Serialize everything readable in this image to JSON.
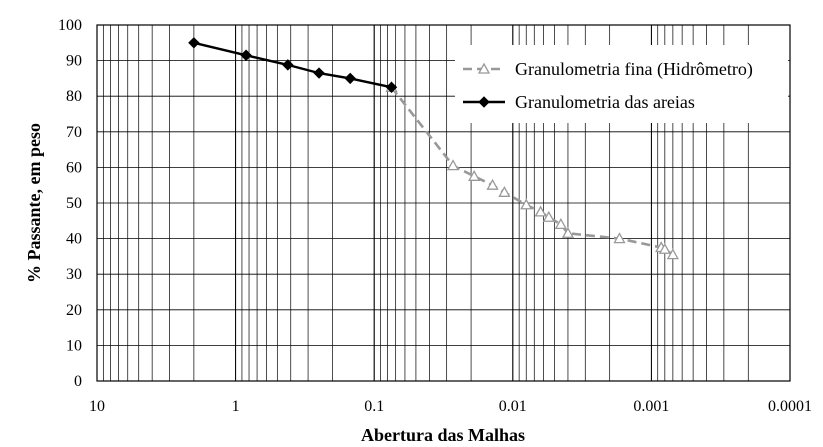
{
  "chart_data": {
    "type": "line",
    "xlabel": "Abertura das Malhas",
    "ylabel": "% Passante, em peso",
    "x_scale": "log",
    "x_reversed": true,
    "xlim": [
      10,
      0.0001
    ],
    "ylim": [
      0,
      100
    ],
    "x_ticks": [
      10,
      1,
      0.1,
      0.01,
      0.001,
      0.0001
    ],
    "x_tick_labels": [
      "10",
      "1",
      "0.1",
      "0.01",
      "0.001",
      "0.0001"
    ],
    "y_ticks": [
      0,
      10,
      20,
      30,
      40,
      50,
      60,
      70,
      80,
      90,
      100
    ],
    "grid": true,
    "legend_position": "top-right",
    "series": [
      {
        "name": "Granulometria fina (Hidrômetro)",
        "color": "#999999",
        "marker": "triangle",
        "dash": true,
        "x": [
          0.075,
          0.027,
          0.019,
          0.014,
          0.0115,
          0.008,
          0.0063,
          0.0055,
          0.0045,
          0.004,
          0.0017,
          0.00085,
          0.0008,
          0.0007
        ],
        "y": [
          82.5,
          60.5,
          57.5,
          55.0,
          53.0,
          49.5,
          47.5,
          46.0,
          44.0,
          41.5,
          40.0,
          37.5,
          37.0,
          35.5
        ]
      },
      {
        "name": "Granulometria das areias",
        "color": "#000000",
        "marker": "diamond",
        "dash": false,
        "x": [
          2.0,
          0.84,
          0.42,
          0.25,
          0.149,
          0.075
        ],
        "y": [
          95.0,
          91.5,
          88.8,
          86.5,
          85.0,
          82.5
        ]
      }
    ]
  }
}
